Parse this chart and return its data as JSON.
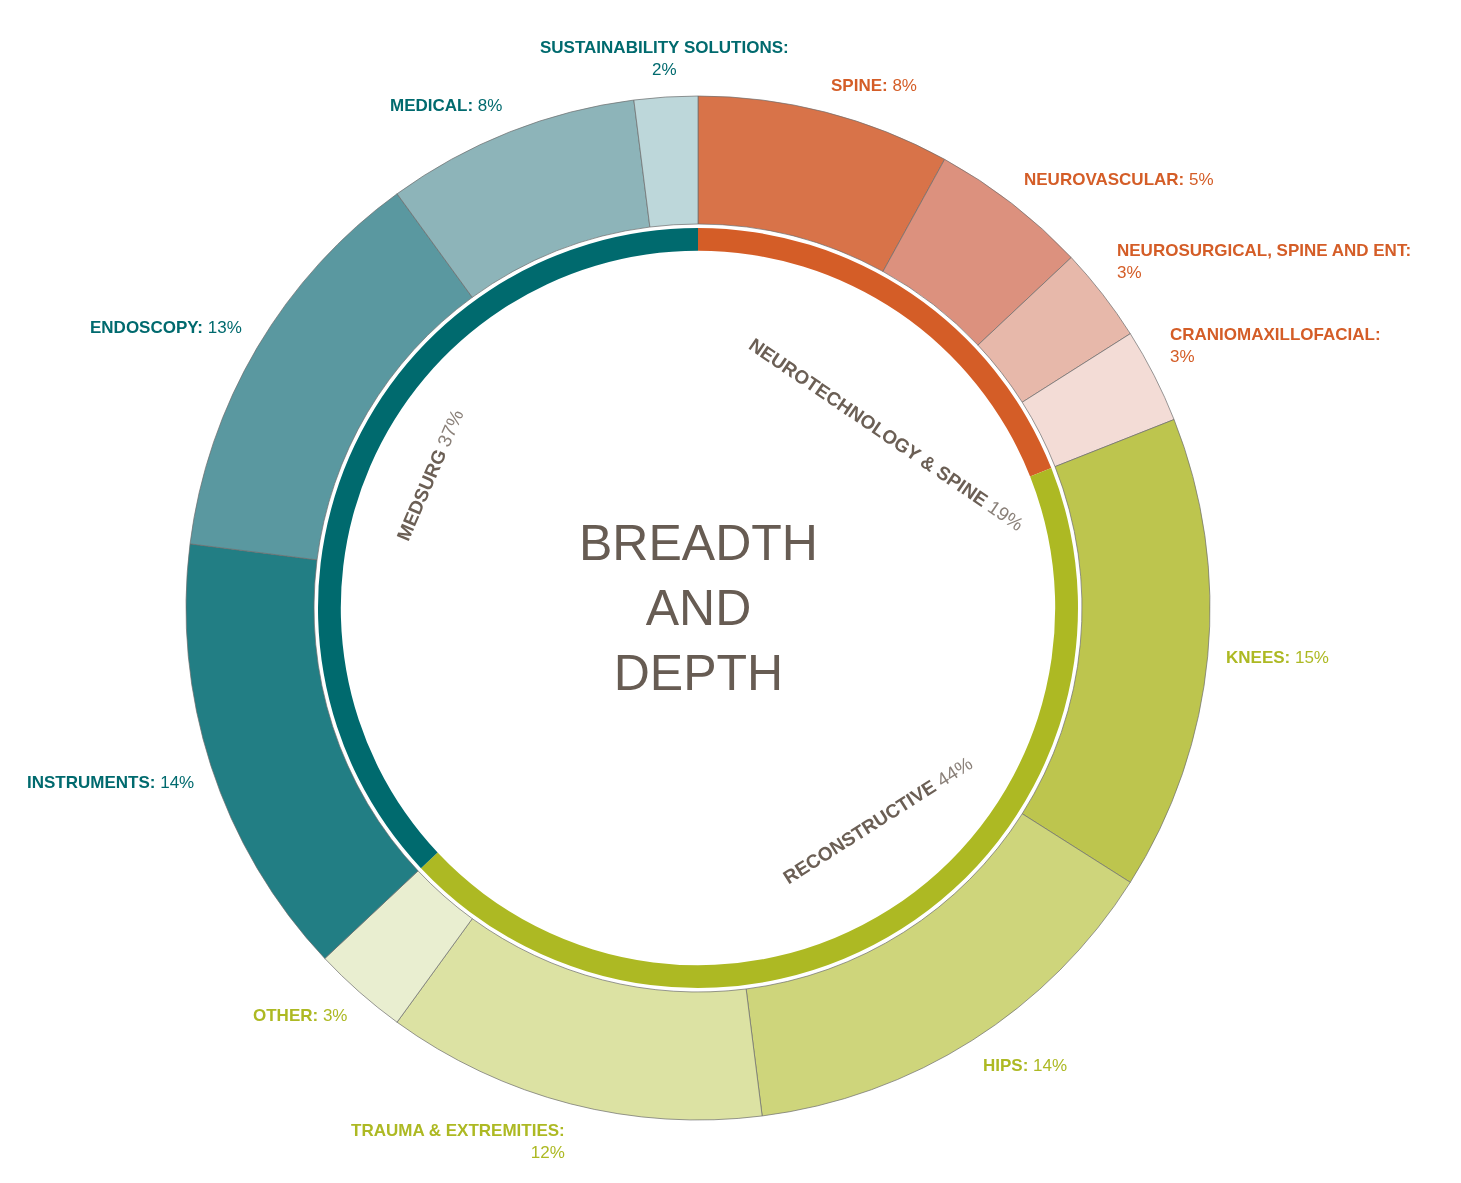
{
  "chart_data": [
    {
      "type": "donut",
      "title": "BREADTH AND DEPTH",
      "categories": [
        "SPINE",
        "NEUROVASCULAR",
        "NEUROSURGICAL, SPINE AND ENT",
        "CRANIOMAXILLOFACIAL",
        "KNEES",
        "HIPS",
        "TRAUMA & EXTREMITIES",
        "OTHER",
        "INSTRUMENTS",
        "ENDOSCOPY",
        "MEDICAL",
        "SUSTAINABILITY SOLUTIONS"
      ],
      "values": [
        8,
        5,
        3,
        3,
        15,
        14,
        12,
        3,
        14,
        13,
        8,
        2
      ],
      "value_labels": [
        ": 8%",
        ": 5%",
        ": 3%",
        ": 3%",
        ": 15%",
        ": 14%",
        ": 12%",
        ": 3%",
        ": 14%",
        ": 13%",
        ": 8%",
        ": 2%"
      ],
      "colors": [
        "#d87349",
        "#dc917e",
        "#e7b8aa",
        "#f3dcd6",
        "#bdc54e",
        "#ced57b",
        "#dce2a3",
        "#e9eed0",
        "#227e84",
        "#5a98a0",
        "#8db4b9",
        "#bdd7da"
      ]
    },
    {
      "type": "donut",
      "categories": [
        "NEUROTECHNOLOGY & SPINE",
        "RECONSTRUCTIVE",
        "MEDSURG"
      ],
      "values": [
        19,
        44,
        37
      ],
      "value_labels": [
        "19%",
        "44%",
        "37%"
      ],
      "colors": [
        "#d45d27",
        "#adb923",
        "#006a6e"
      ]
    }
  ]
}
